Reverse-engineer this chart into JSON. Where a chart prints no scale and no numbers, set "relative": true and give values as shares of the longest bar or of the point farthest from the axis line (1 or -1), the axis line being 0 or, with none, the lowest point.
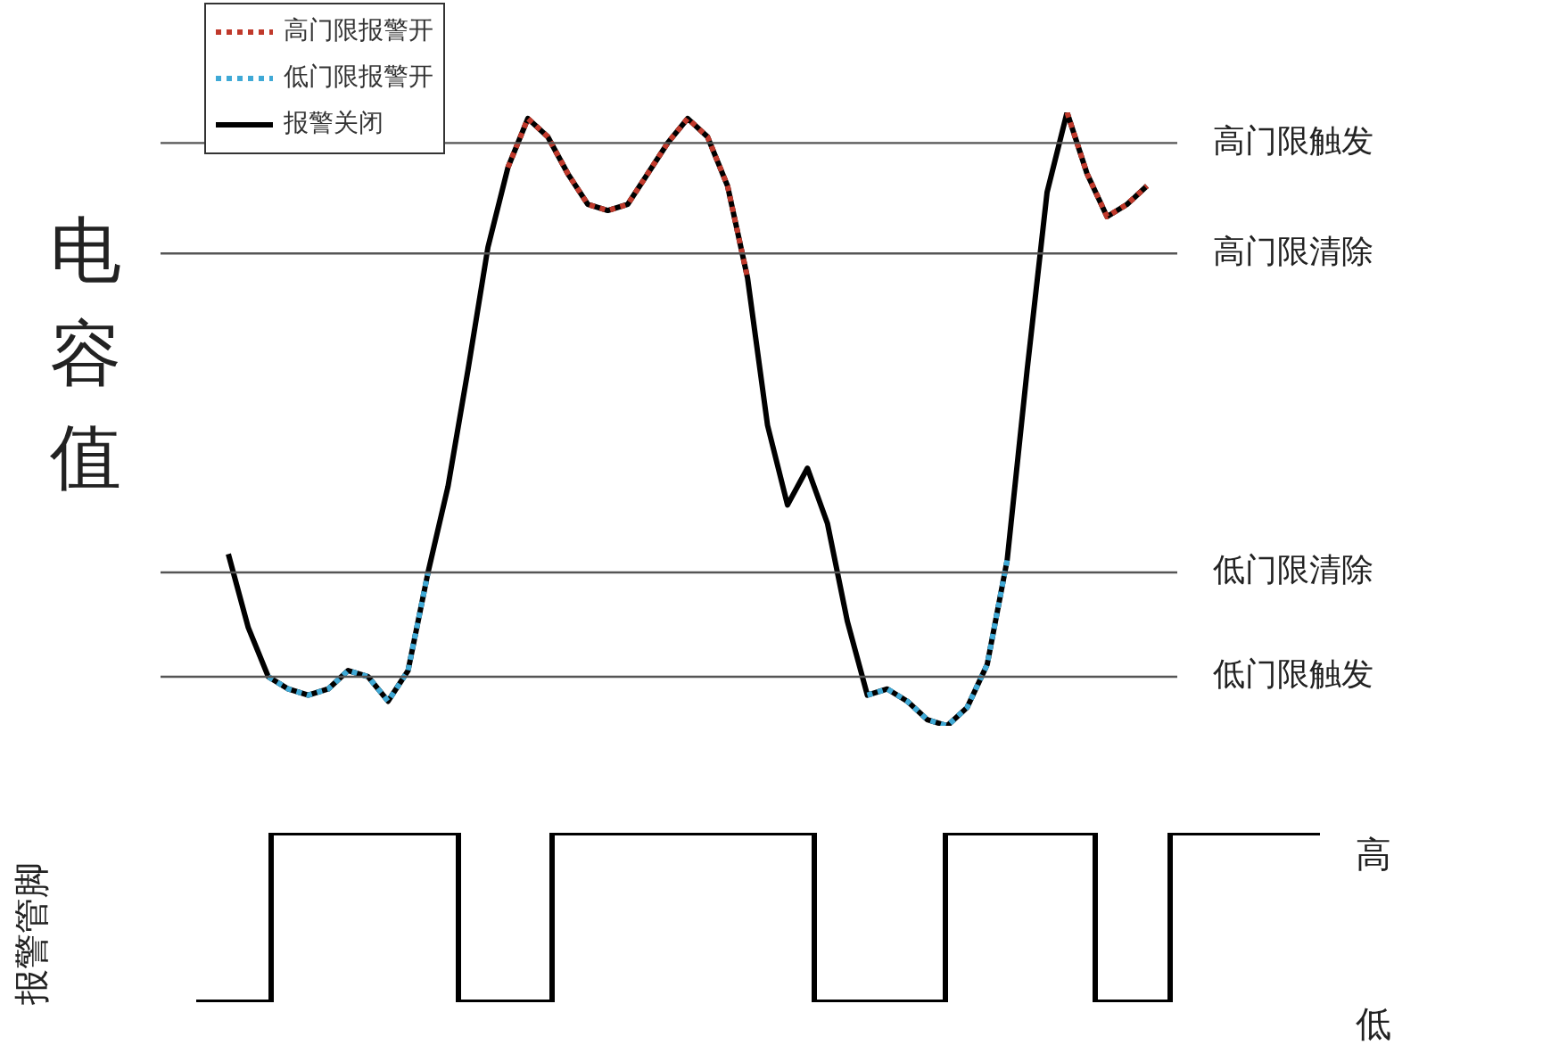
{
  "chart_data": [
    {
      "type": "line",
      "ylabel": "电容值",
      "relative": true,
      "legend": "top left",
      "marker": "none",
      "categories": [
        null,
        null,
        null,
        null,
        null,
        null,
        null,
        null,
        null,
        null,
        null,
        null,
        null,
        null,
        null,
        null,
        null,
        null,
        null,
        null,
        null,
        null,
        null,
        null,
        null,
        null,
        null,
        null,
        null,
        null,
        null,
        null,
        null,
        null,
        null,
        null,
        null,
        null,
        null,
        null,
        null,
        null,
        null,
        null,
        null,
        null,
        null
      ],
      "series": [
        {
          "name": "高门限报警开",
          "color": "#c0392b",
          "line_style": "dotted",
          "values": [
            null,
            null,
            null,
            null,
            null,
            null,
            null,
            null,
            null,
            null,
            null,
            null,
            null,
            null,
            0.91,
            0.99,
            0.96,
            0.9,
            0.85,
            0.84,
            0.85,
            0.9,
            0.95,
            0.99,
            0.96,
            0.88,
            0.73,
            null,
            null,
            null,
            null,
            null,
            null,
            null,
            null,
            null,
            null,
            null,
            null,
            null,
            null,
            null,
            1,
            0.9,
            0.83,
            0.85,
            0.88
          ]
        },
        {
          "name": "低门限报警开",
          "color": "#3fa9d6",
          "line_style": "dotted",
          "values": [
            null,
            null,
            0.08,
            0.06,
            0.05,
            0.06,
            0.09,
            0.08,
            0.04,
            0.09,
            0.25,
            null,
            null,
            null,
            null,
            null,
            null,
            null,
            null,
            null,
            null,
            null,
            null,
            null,
            null,
            null,
            null,
            null,
            null,
            null,
            null,
            null,
            0.05,
            0.06,
            0.04,
            0.01,
            0,
            0.03,
            0.1,
            0.27,
            null,
            null,
            null,
            null,
            null,
            null,
            null
          ]
        },
        {
          "name": "报警关闭",
          "color": "#000000",
          "line_style": "solid",
          "values": [
            0.28,
            0.16,
            0.08,
            0.06,
            0.05,
            0.06,
            0.09,
            0.08,
            0.04,
            0.09,
            0.25,
            0.39,
            0.58,
            0.78,
            0.91,
            0.99,
            0.96,
            0.9,
            0.85,
            0.84,
            0.85,
            0.9,
            0.95,
            0.99,
            0.96,
            0.88,
            0.73,
            0.49,
            0.36,
            0.42,
            0.33,
            0.17,
            0.05,
            0.06,
            0.04,
            0.01,
            0,
            0.03,
            0.1,
            0.27,
            0.58,
            0.87,
            1,
            0.9,
            0.83,
            0.85,
            0.88
          ]
        }
      ],
      "ref_lines": [
        {
          "axis": "y",
          "value": 0.95,
          "label": "高门限触发"
        },
        {
          "axis": "y",
          "value": 0.77,
          "label": "高门限清除"
        },
        {
          "axis": "y",
          "value": 0.25,
          "label": "低门限清除"
        },
        {
          "axis": "y",
          "value": 0.08,
          "label": "低门限触发"
        }
      ]
    },
    {
      "type": "step",
      "ylabel": "报警管脚",
      "relative": true,
      "marker": "none",
      "color": "#000000",
      "categories": [
        null,
        null,
        null,
        null,
        null,
        null,
        null,
        null,
        null,
        null,
        null,
        null,
        null,
        null,
        null,
        null,
        null,
        null,
        null,
        null,
        null,
        null,
        null,
        null,
        null,
        null,
        null,
        null,
        null,
        null,
        null,
        null,
        null,
        null,
        null,
        null,
        null,
        null,
        null,
        null,
        null,
        null,
        null,
        null,
        null,
        null,
        null,
        null,
        null,
        null,
        null,
        null,
        null,
        null,
        null,
        null,
        null,
        null,
        null,
        null,
        null
      ],
      "values": [
        0,
        0,
        0,
        0,
        1,
        1,
        1,
        1,
        1,
        1,
        1,
        1,
        1,
        1,
        0,
        0,
        0,
        0,
        0,
        1,
        1,
        1,
        1,
        1,
        1,
        1,
        1,
        1,
        1,
        1,
        1,
        1,
        1,
        0,
        0,
        0,
        0,
        0,
        0,
        0,
        1,
        1,
        1,
        1,
        1,
        1,
        1,
        1,
        0,
        0,
        0,
        0,
        1,
        1,
        1,
        1,
        1,
        1,
        1,
        1,
        1
      ],
      "annotations": [
        "高",
        "低"
      ]
    }
  ]
}
